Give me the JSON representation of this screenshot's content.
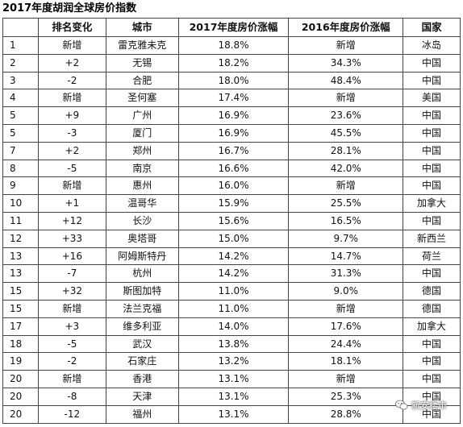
{
  "title": "2017年度胡润全球房价指数",
  "columns": [
    "排名变化",
    "城市",
    "2017年度房价涨幅",
    "2016年度房价涨幅",
    "国家"
  ],
  "rows": [
    {
      "rank": "1",
      "change": "新增",
      "city": "雷克雅未克",
      "y2017": "18.8%",
      "y2016": "新增",
      "country": "冰岛"
    },
    {
      "rank": "2",
      "change": "+2",
      "city": "无锡",
      "y2017": "18.2%",
      "y2016": "34.3%",
      "country": "中国"
    },
    {
      "rank": "3",
      "change": "-2",
      "city": "合肥",
      "y2017": "18.0%",
      "y2016": "48.4%",
      "country": "中国"
    },
    {
      "rank": "4",
      "change": "新增",
      "city": "圣何塞",
      "y2017": "17.4%",
      "y2016": "新增",
      "country": "美国"
    },
    {
      "rank": "5",
      "change": "+9",
      "city": "广州",
      "y2017": "16.9%",
      "y2016": "23.6%",
      "country": "中国"
    },
    {
      "rank": "5",
      "change": "-3",
      "city": "厦门",
      "y2017": "16.9%",
      "y2016": "45.5%",
      "country": "中国"
    },
    {
      "rank": "7",
      "change": "+2",
      "city": "郑州",
      "y2017": "16.7%",
      "y2016": "28.1%",
      "country": "中国"
    },
    {
      "rank": "8",
      "change": "-5",
      "city": "南京",
      "y2017": "16.6%",
      "y2016": "42.0%",
      "country": "中国"
    },
    {
      "rank": "9",
      "change": "新增",
      "city": "惠州",
      "y2017": "16.0%",
      "y2016": "新增",
      "country": "中国"
    },
    {
      "rank": "10",
      "change": "+1",
      "city": "温哥华",
      "y2017": "15.9%",
      "y2016": "25.5%",
      "country": "加拿大"
    },
    {
      "rank": "11",
      "change": "+12",
      "city": "长沙",
      "y2017": "15.6%",
      "y2016": "16.5%",
      "country": "中国"
    },
    {
      "rank": "12",
      "change": "+33",
      "city": "奥塔哥",
      "y2017": "15.0%",
      "y2016": "9.7%",
      "country": "新西兰"
    },
    {
      "rank": "13",
      "change": "+16",
      "city": "阿姆斯特丹",
      "y2017": "14.2%",
      "y2016": "14.7%",
      "country": "荷兰"
    },
    {
      "rank": "13",
      "change": "-7",
      "city": "杭州",
      "y2017": "14.2%",
      "y2016": "31.3%",
      "country": "中国"
    },
    {
      "rank": "15",
      "change": "+32",
      "city": "斯图加特",
      "y2017": "11.0%",
      "y2016": "9.0%",
      "country": "德国"
    },
    {
      "rank": "15",
      "change": "新增",
      "city": "法兰克福",
      "y2017": "11.0%",
      "y2016": "新增",
      "country": "德国"
    },
    {
      "rank": "17",
      "change": "+3",
      "city": "维多利亚",
      "y2017": "14.0%",
      "y2016": "17.6%",
      "country": "加拿大"
    },
    {
      "rank": "18",
      "change": "-5",
      "city": "武汉",
      "y2017": "13.8%",
      "y2016": "24.4%",
      "country": "中国"
    },
    {
      "rank": "19",
      "change": "-2",
      "city": "石家庄",
      "y2017": "13.2%",
      "y2016": "18.1%",
      "country": "中国"
    },
    {
      "rank": "20",
      "change": "新增",
      "city": "香港",
      "y2017": "13.1%",
      "y2016": "新增",
      "country": "中国"
    },
    {
      "rank": "20",
      "change": "-8",
      "city": "天津",
      "y2017": "13.1%",
      "y2016": "25.3%",
      "country": "中国"
    },
    {
      "rank": "20",
      "change": "-12",
      "city": "福州",
      "y2017": "13.1%",
      "y2016": "28.8%",
      "country": "中国"
    }
  ],
  "watermark": {
    "text": "新安楼市",
    "icon": "wechat-icon"
  }
}
